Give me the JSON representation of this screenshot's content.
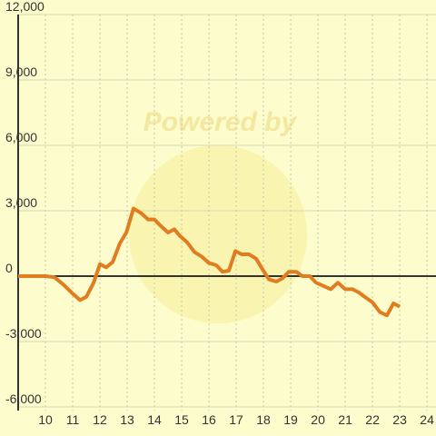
{
  "chart_data": {
    "type": "line",
    "watermark": "Powered by",
    "xlim": [
      9,
      24.33
    ],
    "xticks": [
      10,
      11,
      12,
      13,
      14,
      15,
      16,
      17,
      18,
      19,
      20,
      21,
      22,
      23,
      24
    ],
    "ylim": [
      -6000,
      12000
    ],
    "yticks": [
      {
        "value": -6000,
        "label": "-6,000"
      },
      {
        "value": -3000,
        "label": "-3,000"
      },
      0,
      {
        "value": 3000,
        "label": "3,000"
      },
      {
        "value": 6000,
        "label": "6,000"
      },
      {
        "value": 9000,
        "label": "9,000"
      },
      {
        "value": 12000,
        "label": "12,000"
      }
    ],
    "grid": true,
    "series": [
      {
        "color": "#e07d20",
        "x": [
          9.0,
          10.0,
          10.33,
          10.67,
          11.0,
          11.27,
          11.5,
          11.77,
          12.0,
          12.23,
          12.47,
          12.73,
          12.97,
          13.23,
          13.5,
          13.77,
          14.0,
          14.23,
          14.5,
          14.73,
          14.93,
          15.2,
          15.47,
          15.73,
          16.0,
          16.27,
          16.5,
          16.73,
          16.97,
          17.2,
          17.47,
          17.73,
          17.97,
          18.2,
          18.47,
          18.7,
          18.93,
          19.2,
          19.43,
          19.7,
          19.93,
          20.2,
          20.47,
          20.73,
          21.0,
          21.27,
          21.5,
          21.77,
          22.0,
          22.27,
          22.53,
          22.77,
          23.0
        ],
        "values": [
          0,
          0,
          -50,
          -400,
          -800,
          -1100,
          -950,
          -300,
          550,
          400,
          650,
          1500,
          2000,
          3100,
          2900,
          2600,
          2600,
          2300,
          2000,
          2150,
          1850,
          1550,
          1100,
          900,
          600,
          500,
          200,
          250,
          1150,
          1000,
          1000,
          800,
          300,
          -150,
          -250,
          -100,
          200,
          200,
          0,
          0,
          -300,
          -450,
          -600,
          -300,
          -600,
          -600,
          -750,
          -1000,
          -1200,
          -1650,
          -1800,
          -1250,
          -1400
        ]
      }
    ]
  }
}
